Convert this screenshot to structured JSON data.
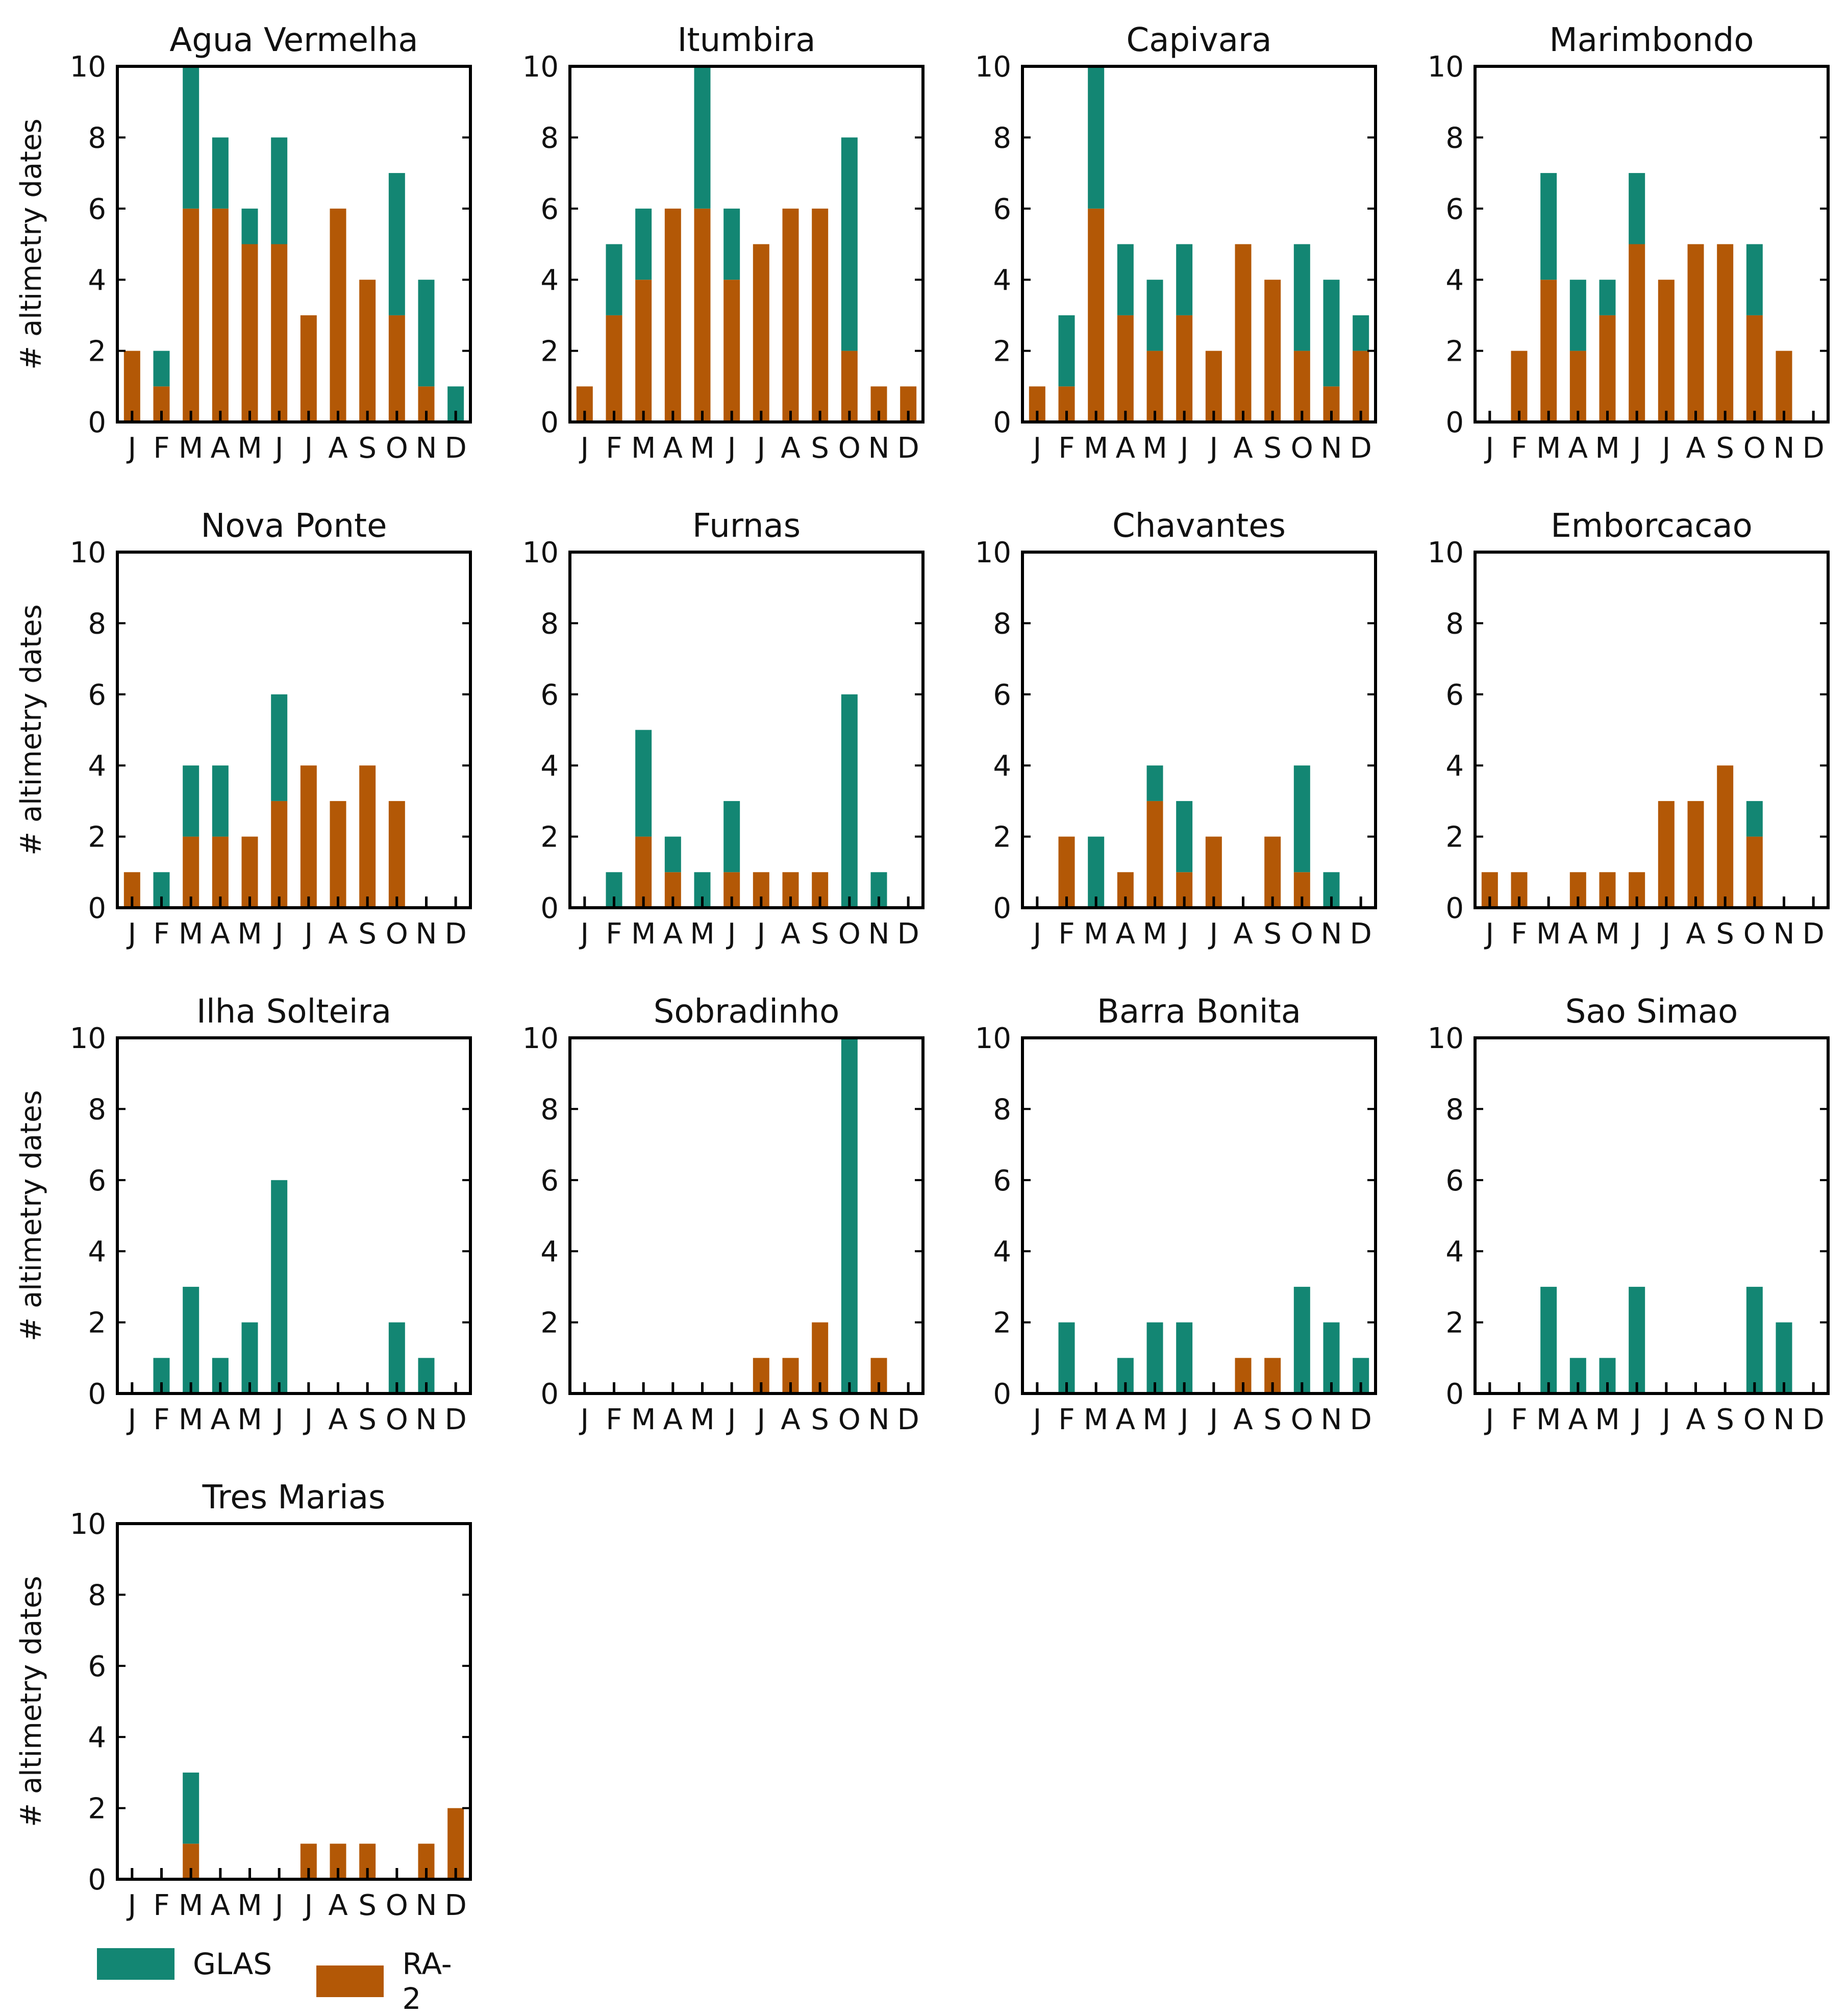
{
  "months": [
    "J",
    "F",
    "M",
    "A",
    "M",
    "J",
    "J",
    "A",
    "S",
    "O",
    "N",
    "D"
  ],
  "colors": {
    "glas": "#138673",
    "ra2": "#b35806"
  },
  "ylabel": "# altimetry dates",
  "ylim": [
    0,
    10
  ],
  "yticks": [
    0,
    2,
    4,
    6,
    8,
    10
  ],
  "legend": {
    "glas": "GLAS",
    "ra2": "RA-2"
  },
  "chart_data": [
    {
      "type": "bar",
      "stacked": true,
      "title": "Agua Vermelha",
      "categories": [
        "J",
        "F",
        "M",
        "A",
        "M",
        "J",
        "J",
        "A",
        "S",
        "O",
        "N",
        "D"
      ],
      "series": [
        {
          "name": "RA-2",
          "values": [
            2,
            1,
            6,
            6,
            5,
            5,
            3,
            6,
            4,
            3,
            1,
            0
          ]
        },
        {
          "name": "GLAS",
          "values": [
            0,
            1,
            4,
            2,
            1,
            3,
            0,
            0,
            0,
            4,
            3,
            1
          ]
        }
      ],
      "ylim": [
        0,
        10
      ],
      "ylabel": "# altimetry dates"
    },
    {
      "type": "bar",
      "stacked": true,
      "title": "Itumbira",
      "categories": [
        "J",
        "F",
        "M",
        "A",
        "M",
        "J",
        "J",
        "A",
        "S",
        "O",
        "N",
        "D"
      ],
      "series": [
        {
          "name": "RA-2",
          "values": [
            1,
            3,
            4,
            6,
            6,
            4,
            5,
            6,
            6,
            2,
            1,
            1
          ]
        },
        {
          "name": "GLAS",
          "values": [
            0,
            2,
            2,
            0,
            4,
            2,
            0,
            0,
            0,
            6,
            0,
            0
          ]
        }
      ],
      "ylim": [
        0,
        10
      ],
      "ylabel": ""
    },
    {
      "type": "bar",
      "stacked": true,
      "title": "Capivara",
      "categories": [
        "J",
        "F",
        "M",
        "A",
        "M",
        "J",
        "J",
        "A",
        "S",
        "O",
        "N",
        "D"
      ],
      "series": [
        {
          "name": "RA-2",
          "values": [
            1,
            1,
            6,
            3,
            2,
            3,
            2,
            5,
            4,
            2,
            1,
            2
          ]
        },
        {
          "name": "GLAS",
          "values": [
            0,
            2,
            4,
            2,
            2,
            2,
            0,
            0,
            0,
            3,
            3,
            1
          ]
        }
      ],
      "ylim": [
        0,
        10
      ],
      "ylabel": ""
    },
    {
      "type": "bar",
      "stacked": true,
      "title": "Marimbondo",
      "categories": [
        "J",
        "F",
        "M",
        "A",
        "M",
        "J",
        "J",
        "A",
        "S",
        "O",
        "N",
        "D"
      ],
      "series": [
        {
          "name": "RA-2",
          "values": [
            0,
            2,
            4,
            2,
            3,
            5,
            4,
            5,
            5,
            3,
            2,
            0
          ]
        },
        {
          "name": "GLAS",
          "values": [
            0,
            0,
            3,
            2,
            1,
            2,
            0,
            0,
            0,
            2,
            0,
            0
          ]
        }
      ],
      "ylim": [
        0,
        10
      ],
      "ylabel": ""
    },
    {
      "type": "bar",
      "stacked": true,
      "title": "Nova Ponte",
      "categories": [
        "J",
        "F",
        "M",
        "A",
        "M",
        "J",
        "J",
        "A",
        "S",
        "O",
        "N",
        "D"
      ],
      "series": [
        {
          "name": "RA-2",
          "values": [
            1,
            0,
            2,
            2,
            2,
            3,
            4,
            3,
            4,
            3,
            0,
            0
          ]
        },
        {
          "name": "GLAS",
          "values": [
            0,
            1,
            2,
            2,
            0,
            3,
            0,
            0,
            0,
            0,
            0,
            0
          ]
        }
      ],
      "ylim": [
        0,
        10
      ],
      "ylabel": "# altimetry dates"
    },
    {
      "type": "bar",
      "stacked": true,
      "title": "Furnas",
      "categories": [
        "J",
        "F",
        "M",
        "A",
        "M",
        "J",
        "J",
        "A",
        "S",
        "O",
        "N",
        "D"
      ],
      "series": [
        {
          "name": "RA-2",
          "values": [
            0,
            0,
            2,
            1,
            0,
            1,
            1,
            1,
            1,
            0,
            0,
            0
          ]
        },
        {
          "name": "GLAS",
          "values": [
            0,
            1,
            3,
            1,
            1,
            2,
            0,
            0,
            0,
            6,
            1,
            0
          ]
        }
      ],
      "ylim": [
        0,
        10
      ],
      "ylabel": ""
    },
    {
      "type": "bar",
      "stacked": true,
      "title": "Chavantes",
      "categories": [
        "J",
        "F",
        "M",
        "A",
        "M",
        "J",
        "J",
        "A",
        "S",
        "O",
        "N",
        "D"
      ],
      "series": [
        {
          "name": "RA-2",
          "values": [
            0,
            2,
            0,
            1,
            3,
            1,
            2,
            0,
            2,
            1,
            0,
            0
          ]
        },
        {
          "name": "GLAS",
          "values": [
            0,
            0,
            2,
            0,
            1,
            2,
            0,
            0,
            0,
            3,
            1,
            0
          ]
        }
      ],
      "ylim": [
        0,
        10
      ],
      "ylabel": ""
    },
    {
      "type": "bar",
      "stacked": true,
      "title": "Emborcacao",
      "categories": [
        "J",
        "F",
        "M",
        "A",
        "M",
        "J",
        "J",
        "A",
        "S",
        "O",
        "N",
        "D"
      ],
      "series": [
        {
          "name": "RA-2",
          "values": [
            1,
            1,
            0,
            1,
            1,
            1,
            3,
            3,
            4,
            2,
            0,
            0
          ]
        },
        {
          "name": "GLAS",
          "values": [
            0,
            0,
            0,
            0,
            0,
            0,
            0,
            0,
            0,
            1,
            0,
            0
          ]
        }
      ],
      "ylim": [
        0,
        10
      ],
      "ylabel": ""
    },
    {
      "type": "bar",
      "stacked": true,
      "title": "Ilha Solteira",
      "categories": [
        "J",
        "F",
        "M",
        "A",
        "M",
        "J",
        "J",
        "A",
        "S",
        "O",
        "N",
        "D"
      ],
      "series": [
        {
          "name": "RA-2",
          "values": [
            0,
            0,
            0,
            0,
            0,
            0,
            0,
            0,
            0,
            0,
            0,
            0
          ]
        },
        {
          "name": "GLAS",
          "values": [
            0,
            1,
            3,
            1,
            2,
            6,
            0,
            0,
            0,
            2,
            1,
            0
          ]
        }
      ],
      "ylim": [
        0,
        10
      ],
      "ylabel": "# altimetry dates"
    },
    {
      "type": "bar",
      "stacked": true,
      "title": "Sobradinho",
      "categories": [
        "J",
        "F",
        "M",
        "A",
        "M",
        "J",
        "J",
        "A",
        "S",
        "O",
        "N",
        "D"
      ],
      "series": [
        {
          "name": "RA-2",
          "values": [
            0,
            0,
            0,
            0,
            0,
            0,
            1,
            1,
            2,
            0,
            1,
            0
          ]
        },
        {
          "name": "GLAS",
          "values": [
            0,
            0,
            0,
            0,
            0,
            0,
            0,
            0,
            0,
            10,
            0,
            0
          ]
        }
      ],
      "ylim": [
        0,
        10
      ],
      "ylabel": ""
    },
    {
      "type": "bar",
      "stacked": true,
      "title": "Barra Bonita",
      "categories": [
        "J",
        "F",
        "M",
        "A",
        "M",
        "J",
        "J",
        "A",
        "S",
        "O",
        "N",
        "D"
      ],
      "series": [
        {
          "name": "RA-2",
          "values": [
            0,
            0,
            0,
            0,
            0,
            0,
            0,
            1,
            1,
            0,
            0,
            0
          ]
        },
        {
          "name": "GLAS",
          "values": [
            0,
            2,
            0,
            1,
            2,
            2,
            0,
            0,
            0,
            3,
            2,
            1
          ]
        }
      ],
      "ylim": [
        0,
        10
      ],
      "ylabel": ""
    },
    {
      "type": "bar",
      "stacked": true,
      "title": "Sao Simao",
      "categories": [
        "J",
        "F",
        "M",
        "A",
        "M",
        "J",
        "J",
        "A",
        "S",
        "O",
        "N",
        "D"
      ],
      "series": [
        {
          "name": "RA-2",
          "values": [
            0,
            0,
            0,
            0,
            0,
            0,
            0,
            0,
            0,
            0,
            0,
            0
          ]
        },
        {
          "name": "GLAS",
          "values": [
            0,
            0,
            3,
            1,
            1,
            3,
            0,
            0,
            0,
            3,
            2,
            0
          ]
        }
      ],
      "ylim": [
        0,
        10
      ],
      "ylabel": ""
    },
    {
      "type": "bar",
      "stacked": true,
      "title": "Tres Marias",
      "categories": [
        "J",
        "F",
        "M",
        "A",
        "M",
        "J",
        "J",
        "A",
        "S",
        "O",
        "N",
        "D"
      ],
      "series": [
        {
          "name": "RA-2",
          "values": [
            0,
            0,
            1,
            0,
            0,
            0,
            1,
            1,
            1,
            0,
            1,
            2
          ]
        },
        {
          "name": "GLAS",
          "values": [
            0,
            0,
            2,
            0,
            0,
            0,
            0,
            0,
            0,
            0,
            0,
            0
          ]
        }
      ],
      "ylim": [
        0,
        10
      ],
      "ylabel": "# altimetry dates"
    }
  ]
}
